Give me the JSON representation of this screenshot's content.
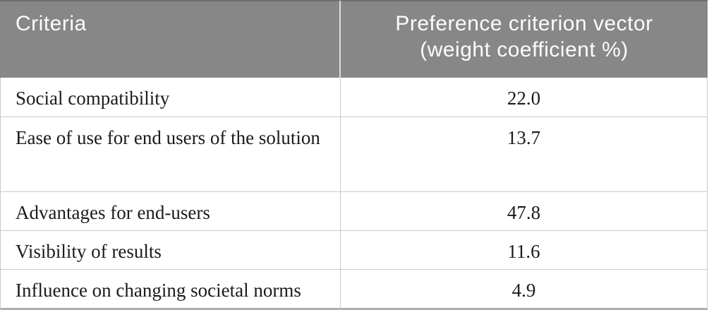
{
  "table": {
    "columns": {
      "criteria": {
        "label": "Criteria"
      },
      "weight": {
        "label": "Preference criterion vector (weight coefficient %)",
        "line1": "Preference criterion vector",
        "line2": "(weight coefficient %)"
      }
    },
    "rows": [
      {
        "criteria": "Social compatibility",
        "weight": "22.0"
      },
      {
        "criteria": "Ease of use for end users of the solution",
        "weight": "13.7"
      },
      {
        "criteria": "Advantages for end-users",
        "weight": "47.8"
      },
      {
        "criteria": "Visibility of results",
        "weight": "11.6"
      },
      {
        "criteria": "Influence on changing societal norms",
        "weight": "4.9"
      }
    ]
  },
  "colors": {
    "header_background": "#878787",
    "header_top_edge": "#6d6d6d",
    "header_text": "#fcfcfc",
    "grid_line": "#c9c9c9",
    "bottom_rule": "#aeaeae",
    "body_text": "#1b1b1b",
    "page_background": "#ffffff"
  },
  "chart_data": {
    "type": "table",
    "title": "",
    "columns": [
      "Criteria",
      "Preference criterion vector (weight coefficient %)"
    ],
    "rows": [
      [
        "Social compatibility",
        22.0
      ],
      [
        "Ease of use for end users of the solution",
        13.7
      ],
      [
        "Advantages for end-users",
        47.8
      ],
      [
        "Visibility of results",
        11.6
      ],
      [
        "Influence on changing societal norms",
        4.9
      ]
    ]
  }
}
